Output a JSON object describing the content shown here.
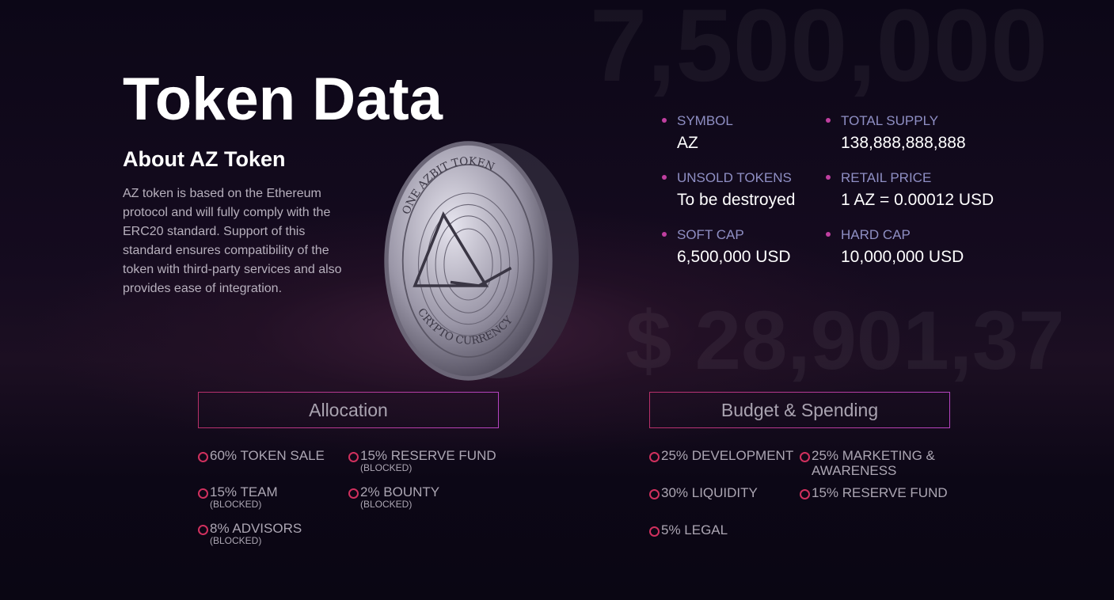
{
  "background": {
    "number1": "7,500,000",
    "number2": "$ 28,901,37"
  },
  "title": "Token Data",
  "about": {
    "heading": "About AZ Token",
    "text": "AZ token is based on the Ethereum protocol and will fully comply with the ERC20 standard. Support of this standard ensures compatibility of the token with third-party services and also provides ease of integration."
  },
  "coin": {
    "top_text": "ONE AZBIT TOKEN",
    "bottom_text": "CRYPTO CURRENCY"
  },
  "facts": [
    {
      "label": "SYMBOL",
      "value": "AZ"
    },
    {
      "label": "TOTAL SUPPLY",
      "value": "138,888,888,888"
    },
    {
      "label": "UNSOLD TOKENS",
      "value": "To be destroyed"
    },
    {
      "label": "RETAIL PRICE",
      "value": "1 AZ = 0.00012 USD"
    },
    {
      "label": "SOFT CAP",
      "value": "6,500,000 USD"
    },
    {
      "label": "HARD CAP",
      "value": "10,000,000 USD"
    }
  ],
  "allocation": {
    "title": "Allocation",
    "items": [
      {
        "text": "60% TOKEN SALE",
        "note": ""
      },
      {
        "text": "15% RESERVE FUND",
        "note": "(BLOCKED)"
      },
      {
        "text": "15% TEAM",
        "note": "(BLOCKED)"
      },
      {
        "text": "2% BOUNTY",
        "note": "(BLOCKED)"
      },
      {
        "text": "8% ADVISORS",
        "note": "(BLOCKED)"
      }
    ]
  },
  "budget": {
    "title": "Budget & Spending",
    "items": [
      {
        "text": "25% DEVELOPMENT"
      },
      {
        "text": "25% MARKETING & AWARENESS"
      },
      {
        "text": "30% LIQUIDITY"
      },
      {
        "text": "15% RESERVE FUND"
      },
      {
        "text": "5% LEGAL"
      }
    ]
  }
}
